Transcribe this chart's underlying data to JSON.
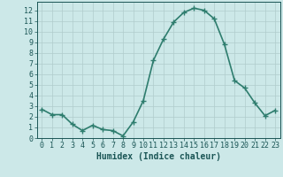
{
  "x": [
    0,
    1,
    2,
    3,
    4,
    5,
    6,
    7,
    8,
    9,
    10,
    11,
    12,
    13,
    14,
    15,
    16,
    17,
    18,
    19,
    20,
    21,
    22,
    23
  ],
  "y": [
    2.7,
    2.2,
    2.2,
    1.3,
    0.7,
    1.2,
    0.8,
    0.7,
    0.2,
    1.5,
    3.5,
    7.3,
    9.3,
    10.9,
    11.8,
    12.2,
    12.0,
    11.2,
    8.8,
    5.4,
    4.7,
    3.3,
    2.1,
    2.6
  ],
  "line_color": "#2e7d6e",
  "marker": "+",
  "marker_size": 4,
  "bg_color": "#cce8e8",
  "grid_color": "#b0cccc",
  "xlabel": "Humidex (Indice chaleur)",
  "xlim": [
    -0.5,
    23.5
  ],
  "ylim": [
    0,
    12.8
  ],
  "yticks": [
    0,
    1,
    2,
    3,
    4,
    5,
    6,
    7,
    8,
    9,
    10,
    11,
    12
  ],
  "xticks": [
    0,
    1,
    2,
    3,
    4,
    5,
    6,
    7,
    8,
    9,
    10,
    11,
    12,
    13,
    14,
    15,
    16,
    17,
    18,
    19,
    20,
    21,
    22,
    23
  ],
  "xlabel_fontsize": 7,
  "tick_fontsize": 6,
  "tick_color": "#1a5555",
  "axis_color": "#1a5555",
  "linewidth": 1.2,
  "marker_color": "#2e7d6e"
}
